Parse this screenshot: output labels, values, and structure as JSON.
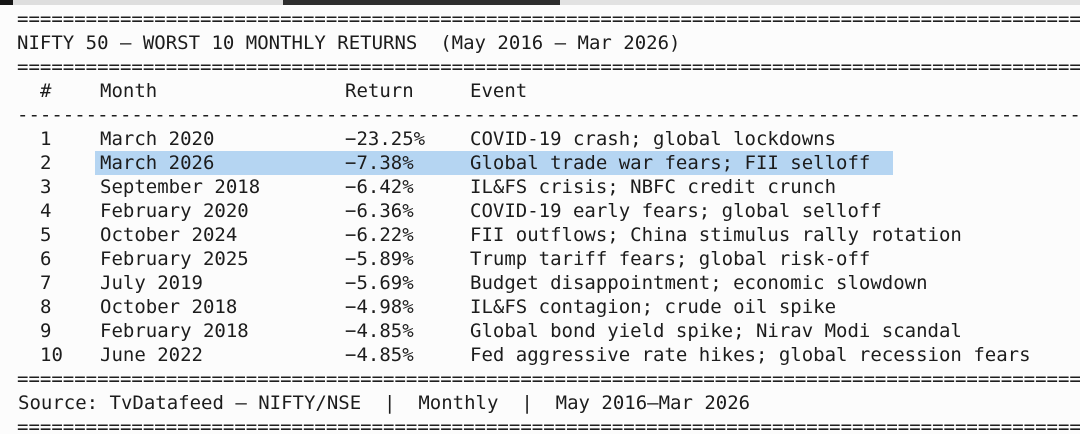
{
  "meta": {
    "background": "#fcfcfc",
    "text_color": "#1c1c1c",
    "highlight_color": "#b5d5f2"
  },
  "title": "NIFTY 50 — WORST 10 MONTHLY RETURNS  (May 2016 — Mar 2026)",
  "rules": {
    "top": "=============================================================================================",
    "below_title": "=============================================================================================",
    "header_dash": "---------------------------------------------------------------------------------------------",
    "above_source": "=============================================================================================",
    "bottom": "============================================================================================="
  },
  "table": {
    "headers": {
      "rank": "#",
      "month": "Month",
      "return": "Return",
      "event": "Event"
    },
    "rows": [
      {
        "rank": "1",
        "month": "March 2020",
        "return": "−23.25%",
        "event": "COVID-19 crash; global lockdowns",
        "highlighted": false
      },
      {
        "rank": "2",
        "month": "March 2026",
        "return": "−7.38%",
        "event": "Global trade war fears; FII selloff",
        "highlighted": true
      },
      {
        "rank": "3",
        "month": "September 2018",
        "return": "−6.42%",
        "event": "IL&FS crisis; NBFC credit crunch",
        "highlighted": false
      },
      {
        "rank": "4",
        "month": "February 2020",
        "return": "−6.36%",
        "event": "COVID-19 early fears; global selloff",
        "highlighted": false
      },
      {
        "rank": "5",
        "month": "October 2024",
        "return": "−6.22%",
        "event": "FII outflows; China stimulus rally rotation",
        "highlighted": false
      },
      {
        "rank": "6",
        "month": "February 2025",
        "return": "−5.89%",
        "event": "Trump tariff fears; global risk-off",
        "highlighted": false
      },
      {
        "rank": "7",
        "month": "July 2019",
        "return": "−5.69%",
        "event": "Budget disappointment; economic slowdown",
        "highlighted": false
      },
      {
        "rank": "8",
        "month": "October 2018",
        "return": "−4.98%",
        "event": "IL&FS contagion; crude oil spike",
        "highlighted": false
      },
      {
        "rank": "9",
        "month": "February 2018",
        "return": "−4.85%",
        "event": "Global bond yield spike; Nirav Modi scandal",
        "highlighted": false
      },
      {
        "rank": "10",
        "month": "June 2022",
        "return": "−4.85%",
        "event": "Fed aggressive rate hikes; global recession fears",
        "highlighted": false
      }
    ]
  },
  "footer": {
    "source": "Source: TvDatafeed — NIFTY/NSE  |  Monthly  |  May 2016—Mar 2026"
  }
}
